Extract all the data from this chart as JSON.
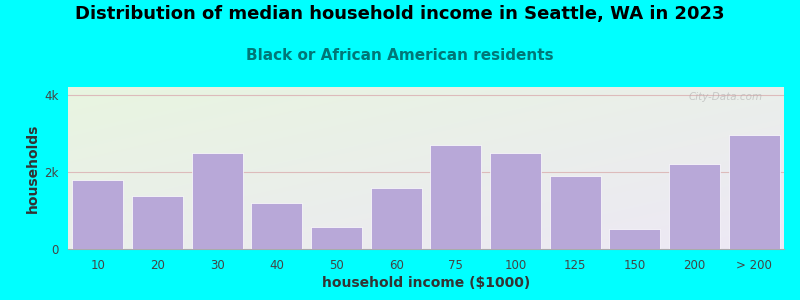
{
  "title": "Distribution of median household income in Seattle, WA in 2023",
  "subtitle": "Black or African American residents",
  "xlabel": "household income ($1000)",
  "ylabel": "households",
  "background_outer": "#00FFFF",
  "bg_color_topleft": "#e8f5e0",
  "bg_color_bottomright": "#ede8f5",
  "bar_color": "#b8a8d8",
  "grid_color": "#ddbbbb",
  "categories": [
    "10",
    "20",
    "30",
    "40",
    "50",
    "60",
    "75",
    "100",
    "125",
    "150",
    "200",
    "> 200"
  ],
  "values": [
    1800,
    1380,
    2480,
    1180,
    580,
    1580,
    2700,
    2480,
    1900,
    530,
    2200,
    2950
  ],
  "ylim": [
    0,
    4200
  ],
  "ytick_vals": [
    0,
    2000,
    4000
  ],
  "ytick_labels": [
    "0",
    "2k",
    "4k"
  ],
  "title_fontsize": 13,
  "subtitle_fontsize": 11,
  "axis_label_fontsize": 10,
  "tick_fontsize": 8.5,
  "subtitle_color": "#007777",
  "watermark": "City-Data.com"
}
